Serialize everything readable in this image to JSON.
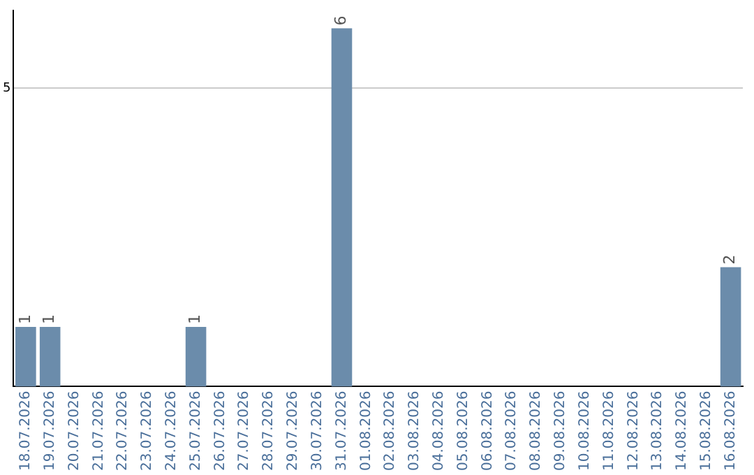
{
  "chart_data": {
    "type": "bar",
    "categories": [
      "18.07.2026",
      "19.07.2026",
      "20.07.2026",
      "21.07.2026",
      "22.07.2026",
      "23.07.2026",
      "24.07.2026",
      "25.07.2026",
      "26.07.2026",
      "27.07.2026",
      "28.07.2026",
      "29.07.2026",
      "30.07.2026",
      "31.07.2026",
      "01.08.2026",
      "02.08.2026",
      "03.08.2026",
      "04.08.2026",
      "05.08.2026",
      "06.08.2026",
      "07.08.2026",
      "08.08.2026",
      "09.08.2026",
      "10.08.2026",
      "11.08.2026",
      "12.08.2026",
      "13.08.2026",
      "14.08.2026",
      "15.08.2026",
      "16.08.2026"
    ],
    "values": [
      1,
      1,
      0,
      0,
      0,
      0,
      0,
      1,
      0,
      0,
      0,
      0,
      0,
      6,
      0,
      0,
      0,
      0,
      0,
      0,
      0,
      0,
      0,
      0,
      0,
      0,
      0,
      0,
      0,
      2
    ],
    "value_labels": [
      "1",
      "1",
      null,
      null,
      null,
      null,
      null,
      "1",
      null,
      null,
      null,
      null,
      null,
      "6",
      null,
      null,
      null,
      null,
      null,
      null,
      null,
      null,
      null,
      null,
      null,
      null,
      null,
      null,
      null,
      "2"
    ],
    "color": "#6b8cab",
    "ylim": [
      0,
      6.3
    ],
    "yticks": [
      5
    ],
    "grid": "y",
    "legend": false
  }
}
